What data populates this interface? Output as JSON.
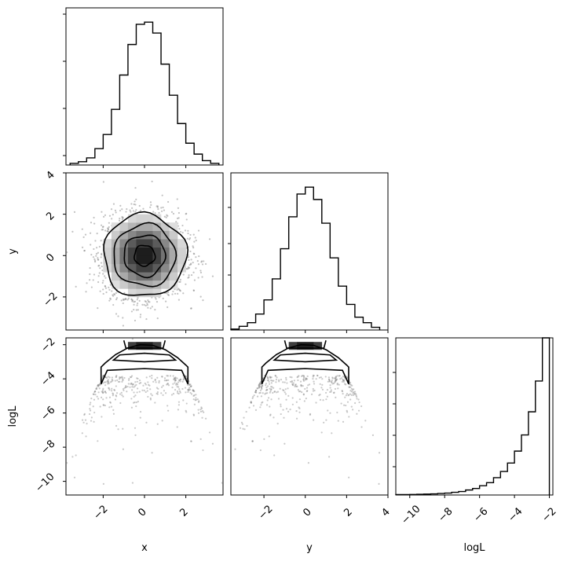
{
  "chart_data": [
    {
      "type": "histogram",
      "panel": "x",
      "bins": [
        -3.6,
        -3.2,
        -2.8,
        -2.4,
        -2.0,
        -1.6,
        -1.2,
        -0.8,
        -0.4,
        0.0,
        0.4,
        0.8,
        1.2,
        1.6,
        2.0,
        2.4,
        2.8,
        3.2,
        3.6
      ],
      "values": [
        0.3,
        0.6,
        1.3,
        3.0,
        5.6,
        10.2,
        16.5,
        22.1,
        25.8,
        26.2,
        24.2,
        18.5,
        12.8,
        7.6,
        4.0,
        2.0,
        0.8,
        0.3
      ],
      "xlim": [
        -3.8,
        3.8
      ],
      "xticks": [
        -2,
        0,
        2
      ]
    },
    {
      "type": "scatter-density",
      "panel": "x-y",
      "x_range": [
        -3.8,
        3.8
      ],
      "y_range": [
        -3.6,
        4.0
      ],
      "xticks": [
        -2,
        0,
        2
      ],
      "yticks": [
        -2,
        0,
        2,
        4
      ],
      "center": [
        0,
        0
      ],
      "contour_sigma_radii": [
        0.5,
        1.0,
        1.5,
        2.0
      ]
    },
    {
      "type": "histogram",
      "panel": "y",
      "bins": [
        -3.6,
        -3.2,
        -2.8,
        -2.4,
        -2.0,
        -1.6,
        -1.2,
        -0.8,
        -0.4,
        0.0,
        0.4,
        0.8,
        1.2,
        1.6,
        2.0,
        2.4,
        2.8,
        3.2,
        3.6
      ],
      "values": [
        0.2,
        0.8,
        1.6,
        3.5,
        6.6,
        11.2,
        17.8,
        24.8,
        29.8,
        31.3,
        28.6,
        23.4,
        15.8,
        9.6,
        5.6,
        2.8,
        1.6,
        0.6
      ],
      "xlim": [
        -3.6,
        4.0
      ],
      "xticks": [
        -2,
        0,
        2,
        4
      ]
    },
    {
      "type": "scatter-density",
      "panel": "x-logL",
      "x_range": [
        -3.8,
        3.8
      ],
      "y_range": [
        -10.8,
        -1.6
      ],
      "xticks": [
        -2,
        0,
        2
      ],
      "yticks": [
        -10,
        -8,
        -6,
        -4,
        -2
      ],
      "relation": "logL = -1.84 - 0.5*(x^2+y^2)"
    },
    {
      "type": "scatter-density",
      "panel": "y-logL",
      "x_range": [
        -3.6,
        4.0
      ],
      "y_range": [
        -10.8,
        -1.6
      ],
      "xticks": [
        -2,
        0,
        2,
        4
      ],
      "yticks": [
        -10,
        -8,
        -6,
        -4,
        -2
      ],
      "relation": "logL = -1.84 - 0.5*(x^2+y^2)"
    },
    {
      "type": "histogram",
      "panel": "logL",
      "bins": [
        -10.8,
        -10.4,
        -10.0,
        -9.6,
        -9.2,
        -8.8,
        -8.4,
        -8.0,
        -7.6,
        -7.2,
        -6.8,
        -6.4,
        -6.0,
        -5.6,
        -5.2,
        -4.8,
        -4.4,
        -4.0,
        -3.6,
        -3.2,
        -2.8,
        -2.4,
        -2.0
      ],
      "values": [
        0.1,
        0.1,
        0.15,
        0.2,
        0.25,
        0.3,
        0.4,
        0.5,
        0.7,
        0.9,
        1.3,
        1.7,
        2.4,
        3.2,
        4.5,
        6.1,
        8.3,
        11.4,
        15.6,
        21.6,
        29.6,
        40.8
      ],
      "xlim": [
        -10.8,
        -1.8
      ],
      "xticks": [
        -10,
        -8,
        -6,
        -4,
        -2
      ]
    }
  ],
  "labels": {
    "x": "x",
    "y": "y",
    "logL": "logL"
  },
  "ticks": {
    "neg10": "−10",
    "neg8": "−8",
    "neg6": "−6",
    "neg4": "−4",
    "neg2": "−2",
    "zero": "0",
    "pos2": "2",
    "pos4": "4"
  }
}
